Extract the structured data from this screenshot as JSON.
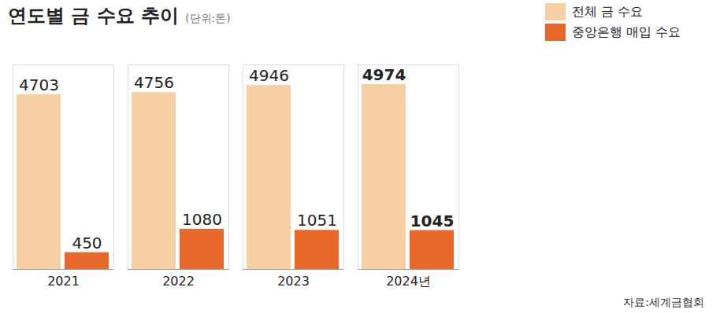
{
  "chart_data": {
    "type": "bar",
    "title": "연도별 금 수요 추이",
    "subtitle": "(단위:톤)",
    "source": "자료:세계금협회",
    "categories": [
      "2021",
      "2022",
      "2023",
      "2024년"
    ],
    "series": [
      {
        "name": "전체 금 수요",
        "color": "#f7cfa4",
        "values": [
          4703,
          4756,
          4946,
          4974
        ]
      },
      {
        "name": "중앙은행 매입 수요",
        "color": "#e8682a",
        "values": [
          450,
          1080,
          1051,
          1045
        ]
      }
    ],
    "ylim": [
      0,
      5500
    ],
    "data_labels": true,
    "tick_labels": "x",
    "legend": "top-right",
    "grid": false
  }
}
